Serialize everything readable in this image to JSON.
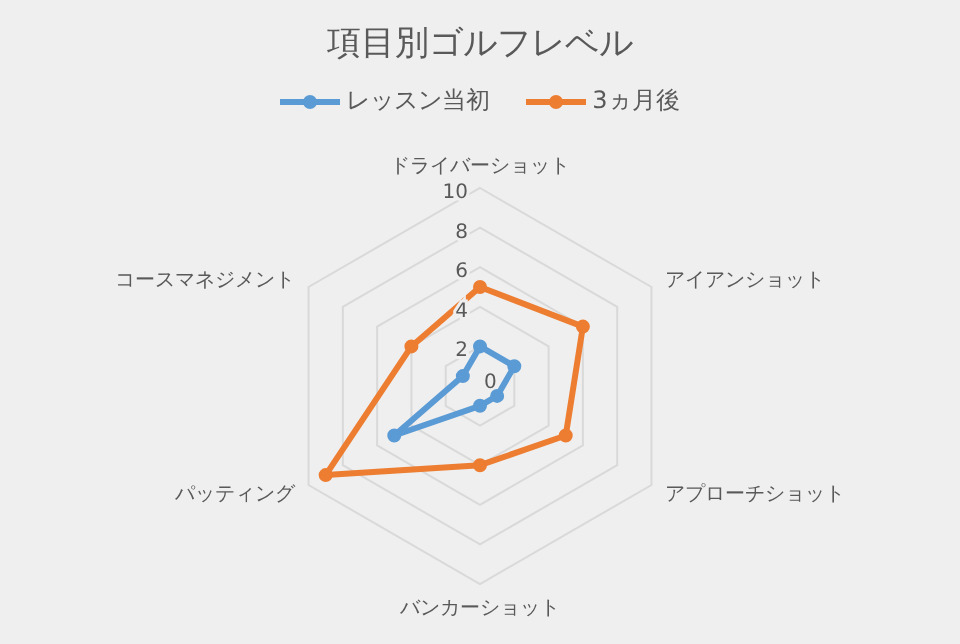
{
  "chart_data": {
    "type": "radar",
    "title": "項目別ゴルフレベル",
    "categories": [
      "ドライバーショット",
      "アイアンショット",
      "アプローチショット",
      "バンカーショット",
      "パッティング",
      "コースマネジメント"
    ],
    "series": [
      {
        "name": "レッスン当初",
        "color": "#5b9bd5",
        "values": [
          2,
          2,
          1,
          1,
          5,
          1
        ]
      },
      {
        "name": "3ヵ月後",
        "color": "#ed7d31",
        "values": [
          5,
          6,
          5,
          4,
          9,
          4
        ]
      }
    ],
    "ylim": [
      0,
      10
    ],
    "yticks": [
      0,
      2,
      4,
      6,
      8,
      10
    ],
    "grid": true,
    "legend": "top",
    "marker": "circle",
    "line_style": "solid"
  }
}
